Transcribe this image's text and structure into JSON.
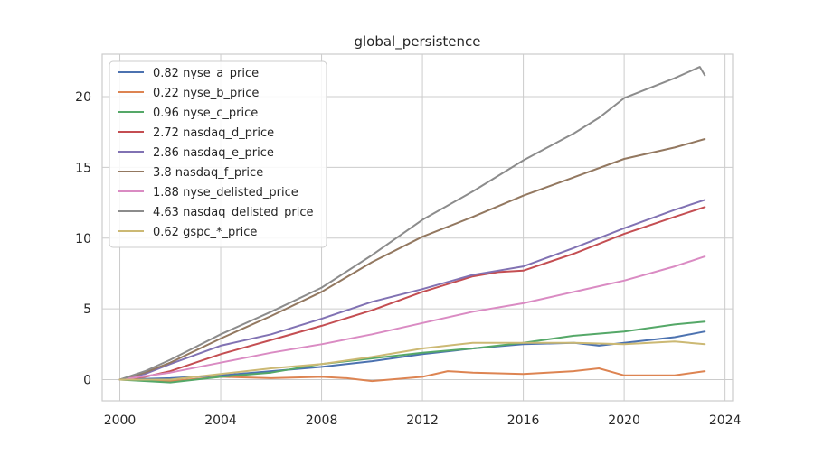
{
  "chart_data": {
    "type": "line",
    "title": "global_persistence",
    "xlabel": "",
    "ylabel": "",
    "xlim": [
      1999.3,
      2024.3
    ],
    "ylim": [
      -1.5,
      23.0
    ],
    "xticks": [
      2000,
      2004,
      2008,
      2012,
      2016,
      2020,
      2024
    ],
    "yticks": [
      0,
      5,
      10,
      15,
      20
    ],
    "grid": true,
    "legend": "top-left",
    "series": [
      {
        "name": "0.82 nyse_a_price",
        "color": "#4c72b0",
        "x": [
          2000,
          2002,
          2004,
          2006,
          2008,
          2010,
          2012,
          2014,
          2016,
          2018,
          2019,
          2020,
          2022,
          2023.2
        ],
        "y": [
          0,
          0.1,
          0.3,
          0.6,
          0.9,
          1.3,
          1.8,
          2.2,
          2.5,
          2.6,
          2.4,
          2.6,
          3.0,
          3.4
        ]
      },
      {
        "name": "0.22 nyse_b_price",
        "color": "#dd8452",
        "x": [
          2000,
          2002,
          2004,
          2006,
          2008,
          2009,
          2010,
          2012,
          2013,
          2014,
          2016,
          2018,
          2019,
          2020,
          2022,
          2023.2
        ],
        "y": [
          0,
          -0.1,
          0.2,
          0.1,
          0.2,
          0.1,
          -0.1,
          0.2,
          0.6,
          0.5,
          0.4,
          0.6,
          0.8,
          0.3,
          0.3,
          0.6
        ]
      },
      {
        "name": "0.96 nyse_c_price",
        "color": "#55a868",
        "x": [
          2000,
          2002,
          2004,
          2006,
          2008,
          2010,
          2012,
          2014,
          2016,
          2018,
          2020,
          2022,
          2023.2
        ],
        "y": [
          0,
          -0.2,
          0.2,
          0.5,
          1.1,
          1.5,
          1.9,
          2.2,
          2.6,
          3.1,
          3.4,
          3.9,
          4.1
        ]
      },
      {
        "name": "2.72 nasdaq_d_price",
        "color": "#c44e52",
        "x": [
          2000,
          2001,
          2002,
          2004,
          2006,
          2008,
          2010,
          2012,
          2014,
          2015,
          2016,
          2018,
          2020,
          2022,
          2023.2
        ],
        "y": [
          0,
          0.2,
          0.6,
          1.8,
          2.8,
          3.8,
          4.9,
          6.2,
          7.3,
          7.6,
          7.7,
          8.9,
          10.3,
          11.5,
          12.2
        ]
      },
      {
        "name": "2.86 nasdaq_e_price",
        "color": "#8172b3",
        "x": [
          2000,
          2001,
          2002,
          2004,
          2006,
          2008,
          2010,
          2012,
          2014,
          2015,
          2016,
          2018,
          2020,
          2022,
          2023.2
        ],
        "y": [
          0,
          0.4,
          1.1,
          2.4,
          3.2,
          4.3,
          5.5,
          6.4,
          7.4,
          7.7,
          8.0,
          9.3,
          10.7,
          12.0,
          12.7
        ]
      },
      {
        "name": "3.8 nasdaq_f_price",
        "color": "#937860",
        "x": [
          2000,
          2001,
          2002,
          2004,
          2006,
          2008,
          2010,
          2012,
          2014,
          2016,
          2018,
          2020,
          2022,
          2023.2
        ],
        "y": [
          0,
          0.5,
          1.2,
          2.9,
          4.5,
          6.2,
          8.3,
          10.1,
          11.5,
          13.0,
          14.3,
          15.6,
          16.4,
          17.0
        ]
      },
      {
        "name": "1.88 nyse_delisted_price",
        "color": "#da8bc3",
        "x": [
          2000,
          2002,
          2004,
          2006,
          2008,
          2010,
          2012,
          2014,
          2016,
          2018,
          2020,
          2022,
          2023.2
        ],
        "y": [
          0,
          0.5,
          1.2,
          1.9,
          2.5,
          3.2,
          4.0,
          4.8,
          5.4,
          6.2,
          7.0,
          8.0,
          8.7
        ]
      },
      {
        "name": "4.63 nasdaq_delisted_price",
        "color": "#8c8c8c",
        "x": [
          2000,
          2001,
          2002,
          2004,
          2006,
          2008,
          2010,
          2012,
          2014,
          2016,
          2018,
          2019,
          2020,
          2021,
          2022,
          2023,
          2023.2
        ],
        "y": [
          0,
          0.6,
          1.4,
          3.2,
          4.8,
          6.5,
          8.8,
          11.3,
          13.3,
          15.5,
          17.4,
          18.5,
          19.9,
          20.6,
          21.3,
          22.1,
          21.5
        ]
      },
      {
        "name": "0.62 gspc_*_price",
        "color": "#ccb974",
        "x": [
          2000,
          2002,
          2004,
          2006,
          2008,
          2010,
          2012,
          2014,
          2016,
          2018,
          2020,
          2022,
          2023.2
        ],
        "y": [
          0,
          0.0,
          0.4,
          0.8,
          1.1,
          1.6,
          2.2,
          2.6,
          2.6,
          2.6,
          2.5,
          2.7,
          2.5
        ]
      }
    ]
  }
}
